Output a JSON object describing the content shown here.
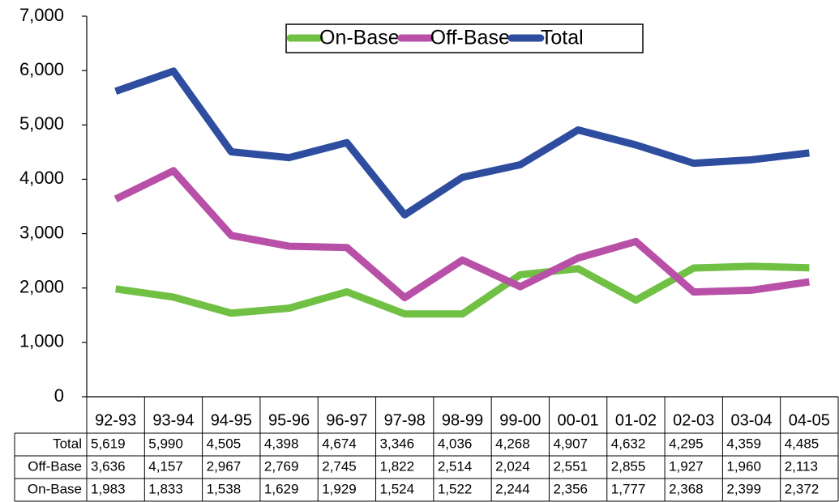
{
  "chart_data": {
    "type": "line",
    "categories": [
      "92-93",
      "93-94",
      "94-95",
      "95-96",
      "96-97",
      "97-98",
      "98-99",
      "99-00",
      "00-01",
      "01-02",
      "02-03",
      "03-04",
      "04-05"
    ],
    "series": [
      {
        "name": "On-Base",
        "color": "#70c044",
        "values": [
          1983,
          1833,
          1538,
          1629,
          1929,
          1524,
          1522,
          2244,
          2356,
          1777,
          2368,
          2399,
          2372
        ],
        "value_labels": [
          "1,983",
          "1,833",
          "1,538",
          "1,629",
          "1,929",
          "1,524",
          "1,522",
          "2,244",
          "2,356",
          "1,777",
          "2,368",
          "2,399",
          "2,372"
        ]
      },
      {
        "name": "Off-Base",
        "color": "#b850a8",
        "values": [
          3636,
          4157,
          2967,
          2769,
          2745,
          1822,
          2514,
          2024,
          2551,
          2855,
          1927,
          1960,
          2113
        ],
        "value_labels": [
          "3,636",
          "4,157",
          "2,967",
          "2,769",
          "2,745",
          "1,822",
          "2,514",
          "2,024",
          "2,551",
          "2,855",
          "1,927",
          "1,960",
          "2,113"
        ]
      },
      {
        "name": "Total",
        "color": "#2e4d9e",
        "values": [
          5619,
          5990,
          4505,
          4398,
          4674,
          3346,
          4036,
          4268,
          4907,
          4632,
          4295,
          4359,
          4485
        ],
        "value_labels": [
          "5,619",
          "5,990",
          "4,505",
          "4,398",
          "4,674",
          "3,346",
          "4,036",
          "4,268",
          "4,907",
          "4,632",
          "4,295",
          "4,359",
          "4,485"
        ]
      }
    ],
    "ylim": [
      0,
      7000
    ],
    "yticks": [
      0,
      {
        "value": 1000,
        "label": "1,000"
      },
      {
        "value": 2000,
        "label": "2,000"
      },
      {
        "value": 3000,
        "label": "3,000"
      },
      {
        "value": 4000,
        "label": "4,000"
      },
      {
        "value": 5000,
        "label": "5,000"
      },
      {
        "value": 6000,
        "label": "6,000"
      },
      {
        "value": 7000,
        "label": "7,000"
      }
    ],
    "legend": "top"
  }
}
